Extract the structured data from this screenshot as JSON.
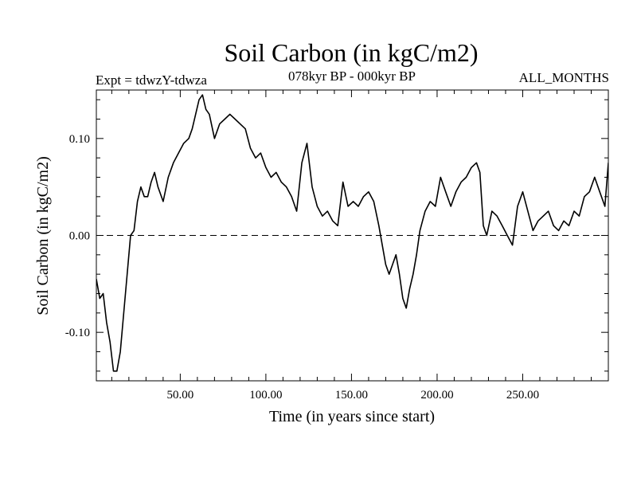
{
  "chart_data": {
    "type": "line",
    "title": "Soil Carbon (in kgC/m2)",
    "subtitle_left": "Expt = tdwzY-tdwza",
    "subtitle_center": "078kyr BP - 000kyr BP",
    "subtitle_right": "ALL_MONTHS",
    "xlabel": "Time (in years since start)",
    "ylabel": "Soil Carbon (in kgC/m2)",
    "xlim": [
      1,
      300
    ],
    "ylim": [
      -0.15,
      0.15
    ],
    "x_ticks": [
      50,
      100,
      150,
      200,
      250
    ],
    "x_tick_labels": [
      "50.00",
      "100.00",
      "150.00",
      "200.00",
      "250.00"
    ],
    "y_ticks": [
      -0.1,
      0.0,
      0.1
    ],
    "y_tick_labels": [
      "-0.10",
      "0.00",
      "0.10"
    ],
    "reference_line": {
      "y": 0.0,
      "style": "dashed"
    },
    "grid": false,
    "series": [
      {
        "x": [
          1,
          3,
          5,
          7,
          9,
          11,
          13,
          15,
          17,
          19,
          21,
          23,
          25,
          27,
          29,
          31,
          33,
          35,
          37,
          40,
          43,
          46,
          49,
          52,
          55,
          57,
          59,
          61,
          63,
          65,
          67,
          70,
          73,
          76,
          79,
          82,
          85,
          88,
          91,
          94,
          97,
          100,
          103,
          106,
          109,
          112,
          115,
          118,
          121,
          124,
          127,
          130,
          133,
          136,
          139,
          142,
          145,
          148,
          151,
          154,
          157,
          160,
          163,
          166,
          168,
          170,
          172,
          174,
          176,
          178,
          180,
          182,
          184,
          186,
          188,
          190,
          193,
          196,
          199,
          202,
          205,
          208,
          211,
          214,
          217,
          220,
          223,
          225,
          227,
          229,
          232,
          235,
          238,
          241,
          244,
          247,
          250,
          253,
          256,
          259,
          262,
          265,
          268,
          271,
          274,
          277,
          280,
          283,
          286,
          289,
          292,
          295,
          298,
          300
        ],
        "values": [
          -0.045,
          -0.065,
          -0.06,
          -0.09,
          -0.11,
          -0.14,
          -0.14,
          -0.12,
          -0.08,
          -0.04,
          0.0,
          0.005,
          0.035,
          0.05,
          0.04,
          0.04,
          0.055,
          0.065,
          0.05,
          0.035,
          0.06,
          0.075,
          0.085,
          0.095,
          0.1,
          0.11,
          0.125,
          0.14,
          0.145,
          0.13,
          0.125,
          0.1,
          0.115,
          0.12,
          0.125,
          0.12,
          0.115,
          0.11,
          0.09,
          0.08,
          0.085,
          0.07,
          0.06,
          0.065,
          0.055,
          0.05,
          0.04,
          0.025,
          0.075,
          0.095,
          0.05,
          0.03,
          0.02,
          0.025,
          0.015,
          0.01,
          0.055,
          0.03,
          0.035,
          0.03,
          0.04,
          0.045,
          0.035,
          0.01,
          -0.01,
          -0.03,
          -0.04,
          -0.03,
          -0.02,
          -0.04,
          -0.065,
          -0.075,
          -0.055,
          -0.04,
          -0.02,
          0.005,
          0.025,
          0.035,
          0.03,
          0.06,
          0.045,
          0.03,
          0.045,
          0.055,
          0.06,
          0.07,
          0.075,
          0.065,
          0.01,
          0.0,
          0.025,
          0.02,
          0.01,
          0.0,
          -0.01,
          0.03,
          0.045,
          0.025,
          0.005,
          0.015,
          0.02,
          0.025,
          0.01,
          0.005,
          0.015,
          0.01,
          0.025,
          0.02,
          0.04,
          0.045,
          0.06,
          0.045,
          0.03,
          0.075
        ]
      }
    ]
  }
}
